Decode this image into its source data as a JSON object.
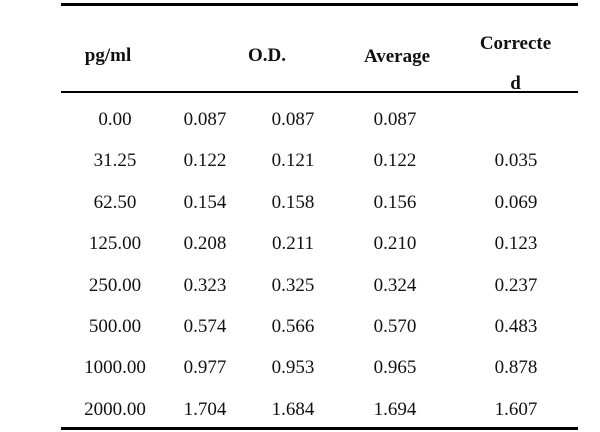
{
  "table": {
    "headers": {
      "concentration": "pg/ml",
      "od": "O.D.",
      "average": "Average",
      "corrected_line1": "Correcte",
      "corrected_line2": "d"
    },
    "rows": [
      {
        "concentration": "0.00",
        "od1": "0.087",
        "od2": "0.087",
        "average": "0.087",
        "corrected": ""
      },
      {
        "concentration": "31.25",
        "od1": "0.122",
        "od2": "0.121",
        "average": "0.122",
        "corrected": "0.035"
      },
      {
        "concentration": "62.50",
        "od1": "0.154",
        "od2": "0.158",
        "average": "0.156",
        "corrected": "0.069"
      },
      {
        "concentration": "125.00",
        "od1": "0.208",
        "od2": "0.211",
        "average": "0.210",
        "corrected": "0.123"
      },
      {
        "concentration": "250.00",
        "od1": "0.323",
        "od2": "0.325",
        "average": "0.324",
        "corrected": "0.237"
      },
      {
        "concentration": "500.00",
        "od1": "0.574",
        "od2": "0.566",
        "average": "0.570",
        "corrected": "0.483"
      },
      {
        "concentration": "1000.00",
        "od1": "0.977",
        "od2": "0.953",
        "average": "0.965",
        "corrected": "0.878"
      },
      {
        "concentration": "2000.00",
        "od1": "1.704",
        "od2": "1.684",
        "average": "1.694",
        "corrected": "1.607"
      }
    ]
  }
}
